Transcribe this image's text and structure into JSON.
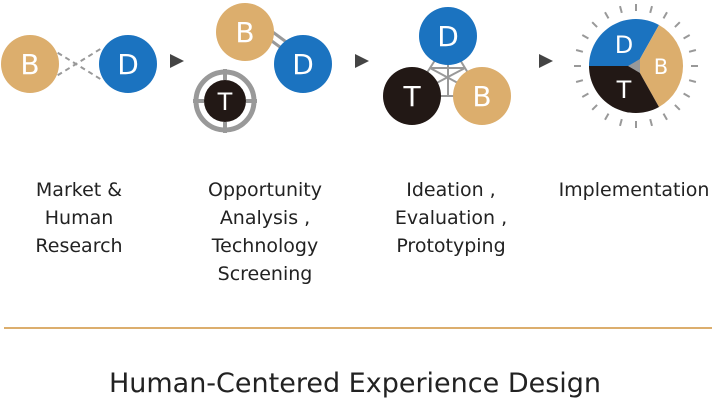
{
  "colors": {
    "business": "#dcae6d",
    "design": "#1b73c0",
    "technology": "#221815",
    "connector": "#999999",
    "arrow": "#444444",
    "divider": "#dcae6d"
  },
  "letters": {
    "business": "B",
    "design": "D",
    "technology": "T"
  },
  "stages": [
    {
      "lines": [
        "Market &",
        "Human",
        "Research"
      ]
    },
    {
      "lines": [
        "Opportunity",
        "Analysis ,",
        "Technology",
        "Screening"
      ]
    },
    {
      "lines": [
        "Ideation ,",
        "Evaluation ,",
        "Prototyping"
      ]
    },
    {
      "lines": [
        "Implementation"
      ]
    }
  ],
  "footer": {
    "title": "Human-Centered Experience Design"
  }
}
